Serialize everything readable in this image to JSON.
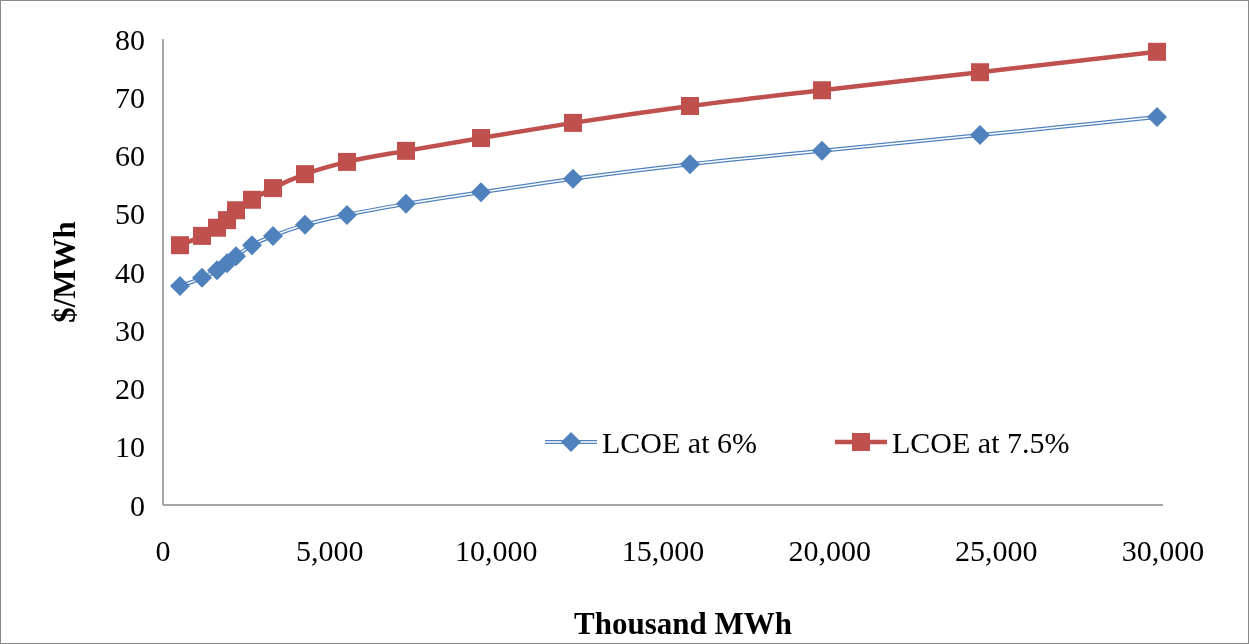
{
  "chart_data": {
    "type": "line",
    "xlabel": "Thousand MWh",
    "ylabel": "$/MWh",
    "x": [
      510,
      1170,
      1620,
      1920,
      2190,
      2670,
      3300,
      4260,
      5520,
      7290,
      9540,
      12300,
      15810,
      19770,
      24510,
      29820
    ],
    "series": [
      {
        "name": "LCOE at 6%",
        "color": "#4f81bd",
        "marker": "diamond",
        "values": [
          37.6,
          39.0,
          40.3,
          41.5,
          42.7,
          44.6,
          46.2,
          48.1,
          49.8,
          51.7,
          53.7,
          56.0,
          58.5,
          60.8,
          63.5,
          66.6
        ]
      },
      {
        "name": "LCOE at 7.5%",
        "color": "#c0504d",
        "marker": "square",
        "values": [
          44.6,
          46.2,
          47.6,
          48.9,
          50.6,
          52.4,
          54.4,
          56.8,
          58.9,
          60.8,
          63.0,
          65.6,
          68.5,
          71.2,
          74.3,
          77.8
        ]
      }
    ],
    "xlim": [
      0,
      30000
    ],
    "xticks": [
      {
        "value": 0,
        "label": "0"
      },
      {
        "value": 5000,
        "label": "5,000"
      },
      {
        "value": 10000,
        "label": "10,000"
      },
      {
        "value": 15000,
        "label": "15,000"
      },
      {
        "value": 20000,
        "label": "20,000"
      },
      {
        "value": 25000,
        "label": "25,000"
      },
      {
        "value": 30000,
        "label": "30,000"
      }
    ],
    "ylim": [
      0,
      80
    ],
    "yticks": [
      0,
      10,
      20,
      30,
      40,
      50,
      60,
      70,
      80
    ],
    "legend": "bottom right",
    "grid": false
  }
}
